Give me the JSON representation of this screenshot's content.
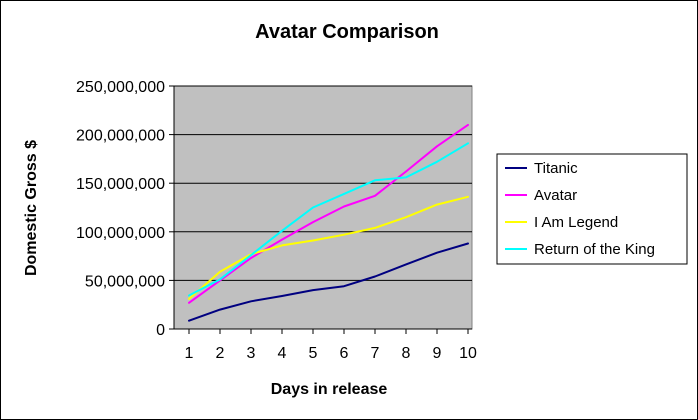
{
  "chart_data": {
    "type": "line",
    "title": "Avatar Comparison",
    "xlabel": "Days in release",
    "ylabel": "Domestic Gross $",
    "x": [
      1,
      2,
      3,
      4,
      5,
      6,
      7,
      8,
      9,
      10
    ],
    "x_tick_labels": [
      "1",
      "2",
      "3",
      "4",
      "5",
      "6",
      "7",
      "8",
      "9",
      "10"
    ],
    "ylim": [
      0,
      250000000
    ],
    "y_ticks": [
      0,
      50000000,
      100000000,
      150000000,
      200000000,
      250000000
    ],
    "y_tick_labels": [
      "0",
      "50,000,000",
      "100,000,000",
      "150,000,000",
      "200,000,000",
      "250,000,000"
    ],
    "grid": "horizontal",
    "legend_position": "right",
    "series": [
      {
        "name": "Titanic",
        "color": "#000080",
        "values": [
          8500000,
          20000000,
          28500000,
          34000000,
          40000000,
          44000000,
          54000000,
          66500000,
          78500000,
          88000000
        ]
      },
      {
        "name": "Avatar",
        "color": "#ff00ff",
        "values": [
          27000000,
          50000000,
          73000000,
          92000000,
          110000000,
          126000000,
          137000000,
          162000000,
          188000000,
          210000000
        ]
      },
      {
        "name": "I Am Legend",
        "color": "#ffff00",
        "values": [
          31000000,
          59000000,
          77000000,
          86000000,
          91000000,
          97000000,
          104000000,
          115000000,
          128000000,
          136000000
        ]
      },
      {
        "name": "Return of the King",
        "color": "#00ffff",
        "values": [
          34500000,
          51000000,
          76000000,
          101000000,
          125000000,
          139000000,
          153000000,
          156000000,
          172000000,
          191000000
        ]
      }
    ],
    "colors": {
      "plot_area": "#c0c0c0",
      "grid": "#000000",
      "page_background": "#ffffff"
    }
  }
}
